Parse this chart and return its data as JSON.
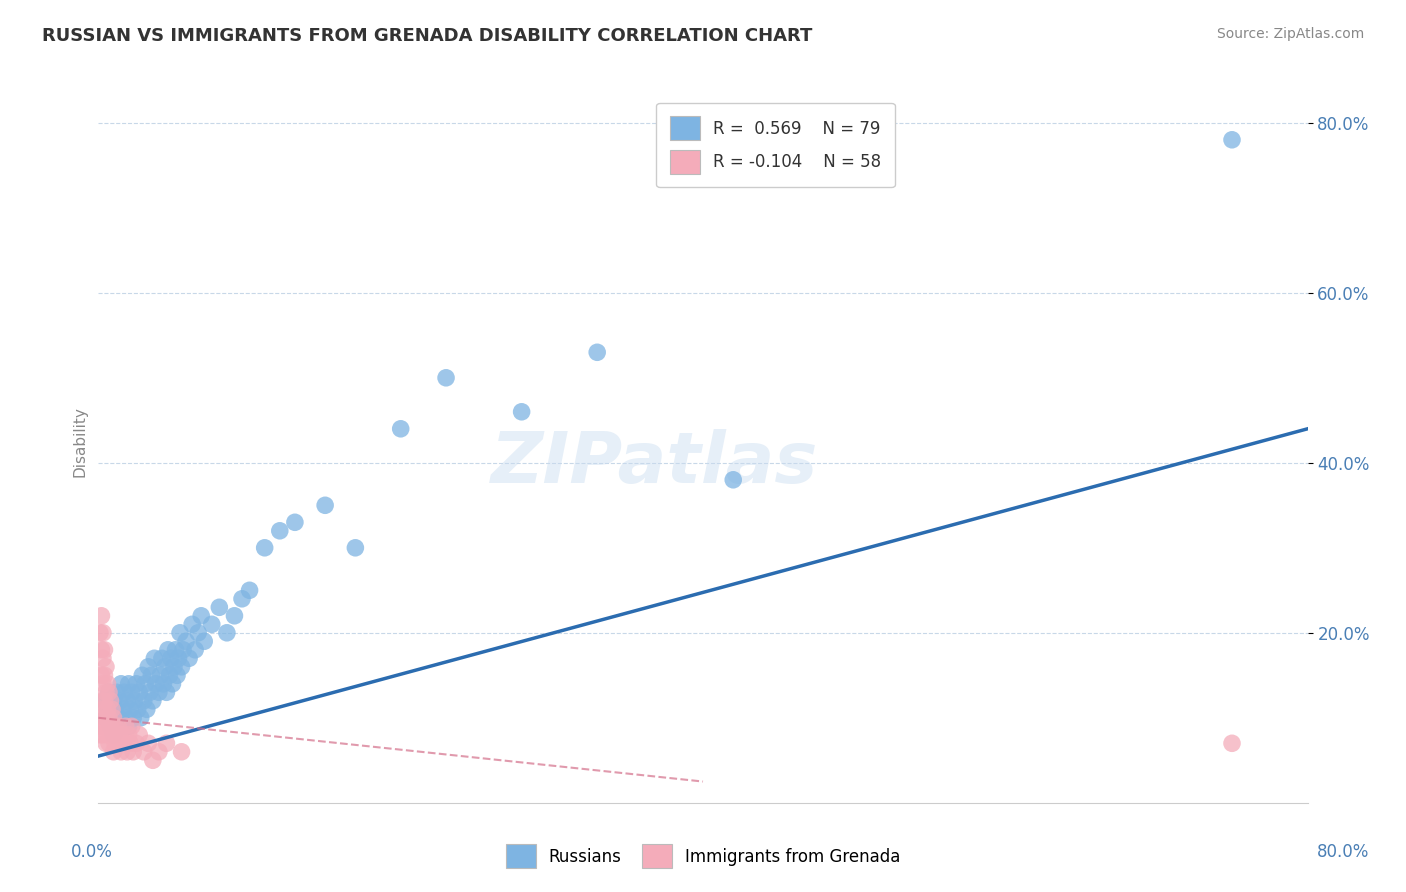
{
  "title": "RUSSIAN VS IMMIGRANTS FROM GRENADA DISABILITY CORRELATION CHART",
  "source": "Source: ZipAtlas.com",
  "ylabel": "Disability",
  "xmin": 0.0,
  "xmax": 0.8,
  "ymin": 0.0,
  "ymax": 0.85,
  "yticks": [
    0.2,
    0.4,
    0.6,
    0.8
  ],
  "ytick_labels": [
    "20.0%",
    "40.0%",
    "60.0%",
    "80.0%"
  ],
  "color_blue": "#7EB4E2",
  "color_blue_line": "#2B6CB0",
  "color_pink": "#F4ACBA",
  "color_pink_line": "#D4708A",
  "color_grid": "#C8D8E8",
  "color_title": "#333333",
  "color_source": "#888888",
  "color_axis_label": "#4A7FB5",
  "russians_x": [
    0.004,
    0.005,
    0.006,
    0.007,
    0.008,
    0.009,
    0.01,
    0.01,
    0.011,
    0.012,
    0.013,
    0.014,
    0.015,
    0.015,
    0.016,
    0.017,
    0.018,
    0.019,
    0.02,
    0.02,
    0.021,
    0.022,
    0.023,
    0.024,
    0.025,
    0.026,
    0.027,
    0.028,
    0.029,
    0.03,
    0.031,
    0.032,
    0.033,
    0.034,
    0.035,
    0.036,
    0.037,
    0.038,
    0.04,
    0.041,
    0.042,
    0.043,
    0.044,
    0.045,
    0.046,
    0.047,
    0.048,
    0.049,
    0.05,
    0.051,
    0.052,
    0.053,
    0.054,
    0.055,
    0.056,
    0.058,
    0.06,
    0.062,
    0.064,
    0.066,
    0.068,
    0.07,
    0.075,
    0.08,
    0.085,
    0.09,
    0.095,
    0.1,
    0.11,
    0.12,
    0.13,
    0.15,
    0.17,
    0.2,
    0.23,
    0.28,
    0.33,
    0.42,
    0.75
  ],
  "russians_y": [
    0.12,
    0.1,
    0.11,
    0.13,
    0.09,
    0.1,
    0.08,
    0.12,
    0.11,
    0.13,
    0.1,
    0.12,
    0.09,
    0.14,
    0.11,
    0.13,
    0.1,
    0.12,
    0.09,
    0.14,
    0.11,
    0.13,
    0.1,
    0.12,
    0.14,
    0.11,
    0.13,
    0.1,
    0.15,
    0.12,
    0.14,
    0.11,
    0.16,
    0.13,
    0.15,
    0.12,
    0.17,
    0.14,
    0.13,
    0.15,
    0.17,
    0.14,
    0.16,
    0.13,
    0.18,
    0.15,
    0.17,
    0.14,
    0.16,
    0.18,
    0.15,
    0.17,
    0.2,
    0.16,
    0.18,
    0.19,
    0.17,
    0.21,
    0.18,
    0.2,
    0.22,
    0.19,
    0.21,
    0.23,
    0.2,
    0.22,
    0.24,
    0.25,
    0.3,
    0.32,
    0.33,
    0.35,
    0.3,
    0.44,
    0.5,
    0.46,
    0.53,
    0.38,
    0.78
  ],
  "grenada_x": [
    0.001,
    0.001,
    0.001,
    0.002,
    0.002,
    0.002,
    0.002,
    0.002,
    0.003,
    0.003,
    0.003,
    0.003,
    0.003,
    0.004,
    0.004,
    0.004,
    0.004,
    0.005,
    0.005,
    0.005,
    0.005,
    0.006,
    0.006,
    0.006,
    0.007,
    0.007,
    0.007,
    0.008,
    0.008,
    0.009,
    0.009,
    0.01,
    0.01,
    0.01,
    0.011,
    0.011,
    0.012,
    0.013,
    0.014,
    0.015,
    0.015,
    0.016,
    0.017,
    0.018,
    0.019,
    0.02,
    0.021,
    0.022,
    0.023,
    0.025,
    0.027,
    0.03,
    0.033,
    0.036,
    0.04,
    0.045,
    0.055,
    0.75
  ],
  "grenada_y": [
    0.2,
    0.1,
    0.08,
    0.22,
    0.18,
    0.15,
    0.12,
    0.09,
    0.2,
    0.17,
    0.14,
    0.11,
    0.08,
    0.18,
    0.15,
    0.12,
    0.09,
    0.16,
    0.13,
    0.1,
    0.07,
    0.14,
    0.11,
    0.08,
    0.13,
    0.1,
    0.07,
    0.12,
    0.09,
    0.11,
    0.08,
    0.1,
    0.08,
    0.06,
    0.09,
    0.07,
    0.08,
    0.09,
    0.08,
    0.07,
    0.06,
    0.08,
    0.07,
    0.09,
    0.06,
    0.08,
    0.07,
    0.09,
    0.06,
    0.07,
    0.08,
    0.06,
    0.07,
    0.05,
    0.06,
    0.07,
    0.06,
    0.07
  ],
  "blue_line_x": [
    0.0,
    0.8
  ],
  "blue_line_y": [
    0.055,
    0.44
  ],
  "pink_line_x": [
    0.0,
    0.4
  ],
  "pink_line_y": [
    0.1,
    0.025
  ]
}
